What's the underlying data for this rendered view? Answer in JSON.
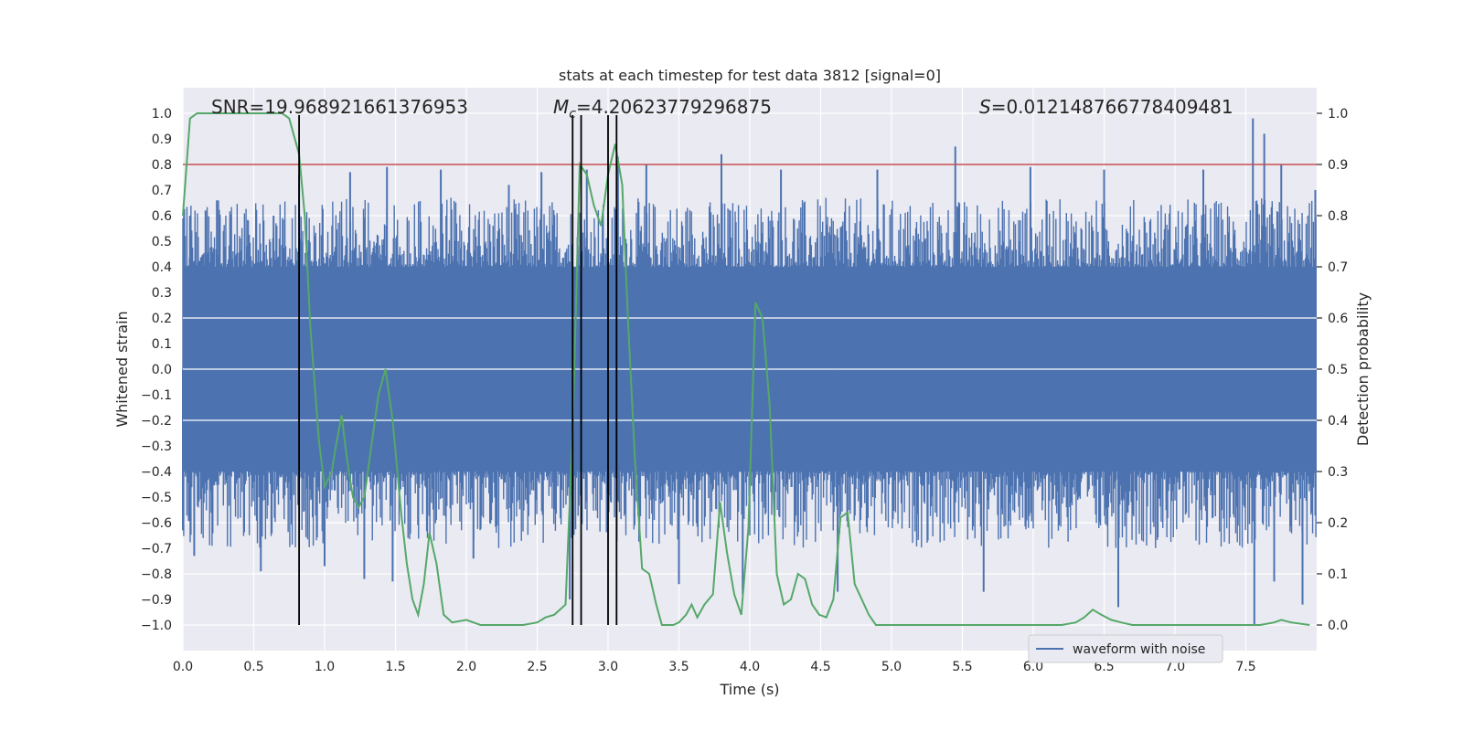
{
  "chart_data": {
    "type": "line",
    "title": "stats at each timestep for test data 3812 [signal=0]",
    "xlabel": "Time (s)",
    "ylabel": "Whitened strain",
    "y2label": "Detection probability",
    "xlim": [
      0.0,
      8.0
    ],
    "ylim": [
      -1.1,
      1.1
    ],
    "y2lim": [
      -0.05,
      1.05
    ],
    "x_ticks": [
      0.0,
      0.5,
      1.0,
      1.5,
      2.0,
      2.5,
      3.0,
      3.5,
      4.0,
      4.5,
      5.0,
      5.5,
      6.0,
      6.5,
      7.0,
      7.5
    ],
    "x_tick_labels": [
      "0.0",
      "0.5",
      "1.0",
      "1.5",
      "2.0",
      "2.5",
      "3.0",
      "3.5",
      "4.0",
      "4.5",
      "5.0",
      "5.5",
      "6.0",
      "6.5",
      "7.0",
      "7.5"
    ],
    "y_ticks": [
      1.0,
      0.9,
      0.8,
      0.7,
      0.6,
      0.5,
      0.4,
      0.3,
      0.2,
      0.1,
      0.0,
      -0.1,
      -0.2,
      -0.3,
      -0.4,
      -0.5,
      -0.6,
      -0.7,
      -0.8,
      -0.9,
      -1.0
    ],
    "y_tick_labels": [
      "1.0",
      "0.9",
      "0.8",
      "0.7",
      "0.6",
      "0.5",
      "0.4",
      "0.3",
      "0.2",
      "0.1",
      "0.0",
      "−0.1",
      "−0.2",
      "−0.3",
      "−0.4",
      "−0.5",
      "−0.6",
      "−0.7",
      "−0.8",
      "−0.9",
      "−1.0"
    ],
    "y2_ticks": [
      1.0,
      0.9,
      0.8,
      0.7,
      0.6,
      0.5,
      0.4,
      0.3,
      0.2,
      0.1,
      0.0
    ],
    "y2_tick_labels": [
      "1.0",
      "0.9",
      "0.8",
      "0.7",
      "0.6",
      "0.5",
      "0.4",
      "0.3",
      "0.2",
      "0.1",
      "0.0"
    ],
    "annotations": {
      "snr": "SNR=19.968921661376953",
      "mc_symbol": "M",
      "mc_sub": "c",
      "mc_value": "=4.20623779296875",
      "s_symbol": "S",
      "s_value": "=0.012148766778409481"
    },
    "threshold": {
      "value": 0.9,
      "axis": "y2",
      "color": "#c44e52"
    },
    "vertical_markers": [
      0.82,
      2.75,
      2.81,
      3.0,
      3.06
    ],
    "waveform": {
      "name": "waveform with noise",
      "color": "#4c72b0",
      "core_amplitude": 0.4,
      "typical_peak_amplitude": 0.55,
      "spikes": [
        {
          "t": 0.0,
          "v": -0.63
        },
        {
          "t": 0.05,
          "v": 0.6
        },
        {
          "t": 0.08,
          "v": -0.73
        },
        {
          "t": 0.16,
          "v": 0.62
        },
        {
          "t": 0.24,
          "v": 0.66
        },
        {
          "t": 0.46,
          "v": 0.58
        },
        {
          "t": 0.55,
          "v": -0.79
        },
        {
          "t": 0.64,
          "v": 0.6
        },
        {
          "t": 0.82,
          "v": 0.76
        },
        {
          "t": 1.0,
          "v": -0.77
        },
        {
          "t": 1.18,
          "v": 0.77
        },
        {
          "t": 1.28,
          "v": -0.82
        },
        {
          "t": 1.44,
          "v": 0.79
        },
        {
          "t": 1.48,
          "v": -0.83
        },
        {
          "t": 1.82,
          "v": 0.78
        },
        {
          "t": 2.05,
          "v": -0.74
        },
        {
          "t": 2.3,
          "v": 0.72
        },
        {
          "t": 2.53,
          "v": 0.77
        },
        {
          "t": 2.73,
          "v": -0.9
        },
        {
          "t": 2.85,
          "v": 0.78
        },
        {
          "t": 3.07,
          "v": 0.83
        },
        {
          "t": 3.27,
          "v": 0.8
        },
        {
          "t": 3.5,
          "v": -0.84
        },
        {
          "t": 3.8,
          "v": 0.84
        },
        {
          "t": 3.95,
          "v": -0.88
        },
        {
          "t": 4.22,
          "v": 0.78
        },
        {
          "t": 4.62,
          "v": -0.87
        },
        {
          "t": 4.9,
          "v": 0.78
        },
        {
          "t": 5.45,
          "v": 0.87
        },
        {
          "t": 5.65,
          "v": -0.87
        },
        {
          "t": 5.98,
          "v": 0.79
        },
        {
          "t": 6.5,
          "v": 0.78
        },
        {
          "t": 6.6,
          "v": -0.93
        },
        {
          "t": 7.2,
          "v": 0.78
        },
        {
          "t": 7.55,
          "v": 0.98
        },
        {
          "t": 7.56,
          "v": -1.0
        },
        {
          "t": 7.63,
          "v": 0.92
        },
        {
          "t": 7.7,
          "v": -0.83
        },
        {
          "t": 7.75,
          "v": 0.8
        },
        {
          "t": 7.9,
          "v": -0.92
        },
        {
          "t": 7.99,
          "v": 0.7
        }
      ]
    },
    "detection_probability": {
      "color": "#55a868",
      "x": [
        0.0,
        0.05,
        0.1,
        0.15,
        0.2,
        0.25,
        0.3,
        0.35,
        0.4,
        0.45,
        0.5,
        0.55,
        0.6,
        0.65,
        0.7,
        0.75,
        0.82,
        0.86,
        0.9,
        0.96,
        1.0,
        1.05,
        1.08,
        1.12,
        1.16,
        1.2,
        1.24,
        1.28,
        1.32,
        1.38,
        1.43,
        1.48,
        1.54,
        1.58,
        1.62,
        1.66,
        1.7,
        1.74,
        1.79,
        1.84,
        1.9,
        2.0,
        2.1,
        2.2,
        2.3,
        2.4,
        2.5,
        2.56,
        2.62,
        2.66,
        2.7,
        2.75,
        2.8,
        2.85,
        2.9,
        2.95,
        3.0,
        3.05,
        3.1,
        3.14,
        3.19,
        3.24,
        3.29,
        3.34,
        3.38,
        3.42,
        3.46,
        3.5,
        3.55,
        3.59,
        3.63,
        3.68,
        3.74,
        3.79,
        3.84,
        3.89,
        3.94,
        3.99,
        4.04,
        4.09,
        4.14,
        4.19,
        4.24,
        4.29,
        4.34,
        4.39,
        4.44,
        4.49,
        4.54,
        4.59,
        4.64,
        4.69,
        4.74,
        4.79,
        4.84,
        4.89,
        4.94,
        4.99,
        5.04,
        5.09,
        5.14,
        5.2,
        5.3,
        5.5,
        5.8,
        6.0,
        6.2,
        6.3,
        6.36,
        6.42,
        6.48,
        6.55,
        6.62,
        6.7,
        6.8,
        7.0,
        7.2,
        7.4,
        7.6,
        7.7,
        7.75,
        7.82,
        7.95
      ],
      "y": [
        0.8,
        0.99,
        1.0,
        1.0,
        1.0,
        1.0,
        1.0,
        1.0,
        1.0,
        1.0,
        1.0,
        1.0,
        1.0,
        1.0,
        1.0,
        0.99,
        0.92,
        0.8,
        0.58,
        0.36,
        0.27,
        0.3,
        0.35,
        0.41,
        0.32,
        0.25,
        0.23,
        0.25,
        0.33,
        0.45,
        0.5,
        0.4,
        0.22,
        0.12,
        0.05,
        0.02,
        0.08,
        0.18,
        0.12,
        0.02,
        0.005,
        0.01,
        0.0,
        0.0,
        0.0,
        0.0,
        0.005,
        0.015,
        0.02,
        0.03,
        0.04,
        0.38,
        0.9,
        0.88,
        0.82,
        0.78,
        0.88,
        0.94,
        0.86,
        0.6,
        0.32,
        0.11,
        0.1,
        0.04,
        0.0,
        0.0,
        0.0,
        0.005,
        0.02,
        0.04,
        0.015,
        0.04,
        0.06,
        0.24,
        0.14,
        0.06,
        0.02,
        0.19,
        0.63,
        0.6,
        0.43,
        0.1,
        0.04,
        0.05,
        0.1,
        0.09,
        0.04,
        0.02,
        0.015,
        0.05,
        0.21,
        0.22,
        0.08,
        0.05,
        0.02,
        0.0,
        0.0,
        0.0,
        0.0,
        0.0,
        0.0,
        0.0,
        0.0,
        0.0,
        0.0,
        0.0,
        0.0,
        0.005,
        0.015,
        0.03,
        0.02,
        0.01,
        0.005,
        0.0,
        0.0,
        0.0,
        0.0,
        0.0,
        0.0,
        0.005,
        0.01,
        0.005,
        0.0
      ]
    },
    "legend": {
      "label": "waveform with noise",
      "placement": "lower-right"
    }
  }
}
